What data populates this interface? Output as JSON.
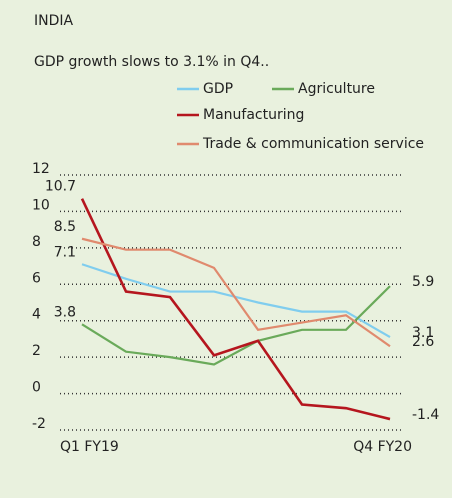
{
  "chart_data": {
    "type": "line",
    "title": "INDIA",
    "subtitle": "GDP growth slows to 3.1% in Q4..",
    "categories": [
      "Q1 FY19",
      null,
      null,
      null,
      null,
      null,
      null,
      "Q4 FY20"
    ],
    "series": [
      {
        "name": "GDP",
        "color": "#80cdee",
        "values": [
          7.1,
          6.3,
          5.6,
          5.6,
          5.0,
          4.5,
          4.5,
          3.1
        ]
      },
      {
        "name": "Agriculture",
        "color": "#6aaa5a",
        "values": [
          3.8,
          2.3,
          2.0,
          1.6,
          2.9,
          3.5,
          3.5,
          5.9
        ]
      },
      {
        "name": "Manufacturing",
        "color": "#b5161e",
        "values": [
          10.7,
          5.6,
          5.3,
          2.1,
          2.9,
          -0.6,
          -0.8,
          -1.4
        ]
      },
      {
        "name": "Trade & communication service",
        "color": "#e08a6e",
        "values": [
          8.5,
          7.9,
          7.9,
          6.9,
          3.5,
          3.9,
          4.3,
          2.6
        ]
      }
    ],
    "ylim": [
      -2,
      12
    ],
    "yticks": [
      -2,
      0,
      2,
      4,
      6,
      8,
      10,
      12
    ],
    "grid": true
  }
}
